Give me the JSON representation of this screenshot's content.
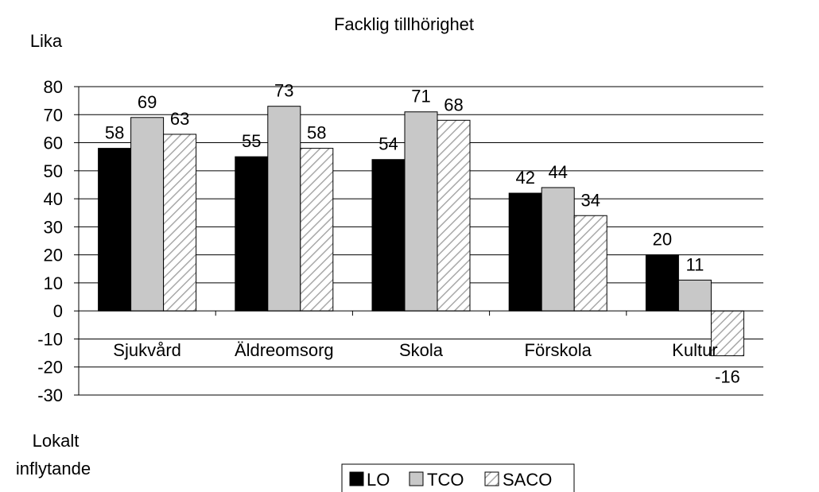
{
  "chart_data": {
    "type": "bar",
    "title": "Facklig tillhörighet",
    "ylabel_top": "Lika",
    "ylabel_bottom": [
      "Lokalt",
      "inflytande"
    ],
    "categories": [
      "Sjukvård",
      "Äldreomsorg",
      "Skola",
      "Förskola",
      "Kultur"
    ],
    "series": [
      {
        "name": "LO",
        "values": [
          58,
          55,
          54,
          42,
          20
        ],
        "color": "#000000",
        "pattern": "solid"
      },
      {
        "name": "TCO",
        "values": [
          69,
          73,
          71,
          44,
          11
        ],
        "color": "#c8c8c8",
        "pattern": "solid"
      },
      {
        "name": "SACO",
        "values": [
          63,
          58,
          68,
          34,
          -16
        ],
        "color": "#ffffff",
        "pattern": "hatched"
      }
    ],
    "ylim": [
      -30,
      80
    ],
    "yticks": [
      80,
      70,
      60,
      50,
      40,
      30,
      20,
      10,
      0,
      -10,
      -20,
      -30
    ],
    "grid": true,
    "legend_position": "bottom-center"
  }
}
